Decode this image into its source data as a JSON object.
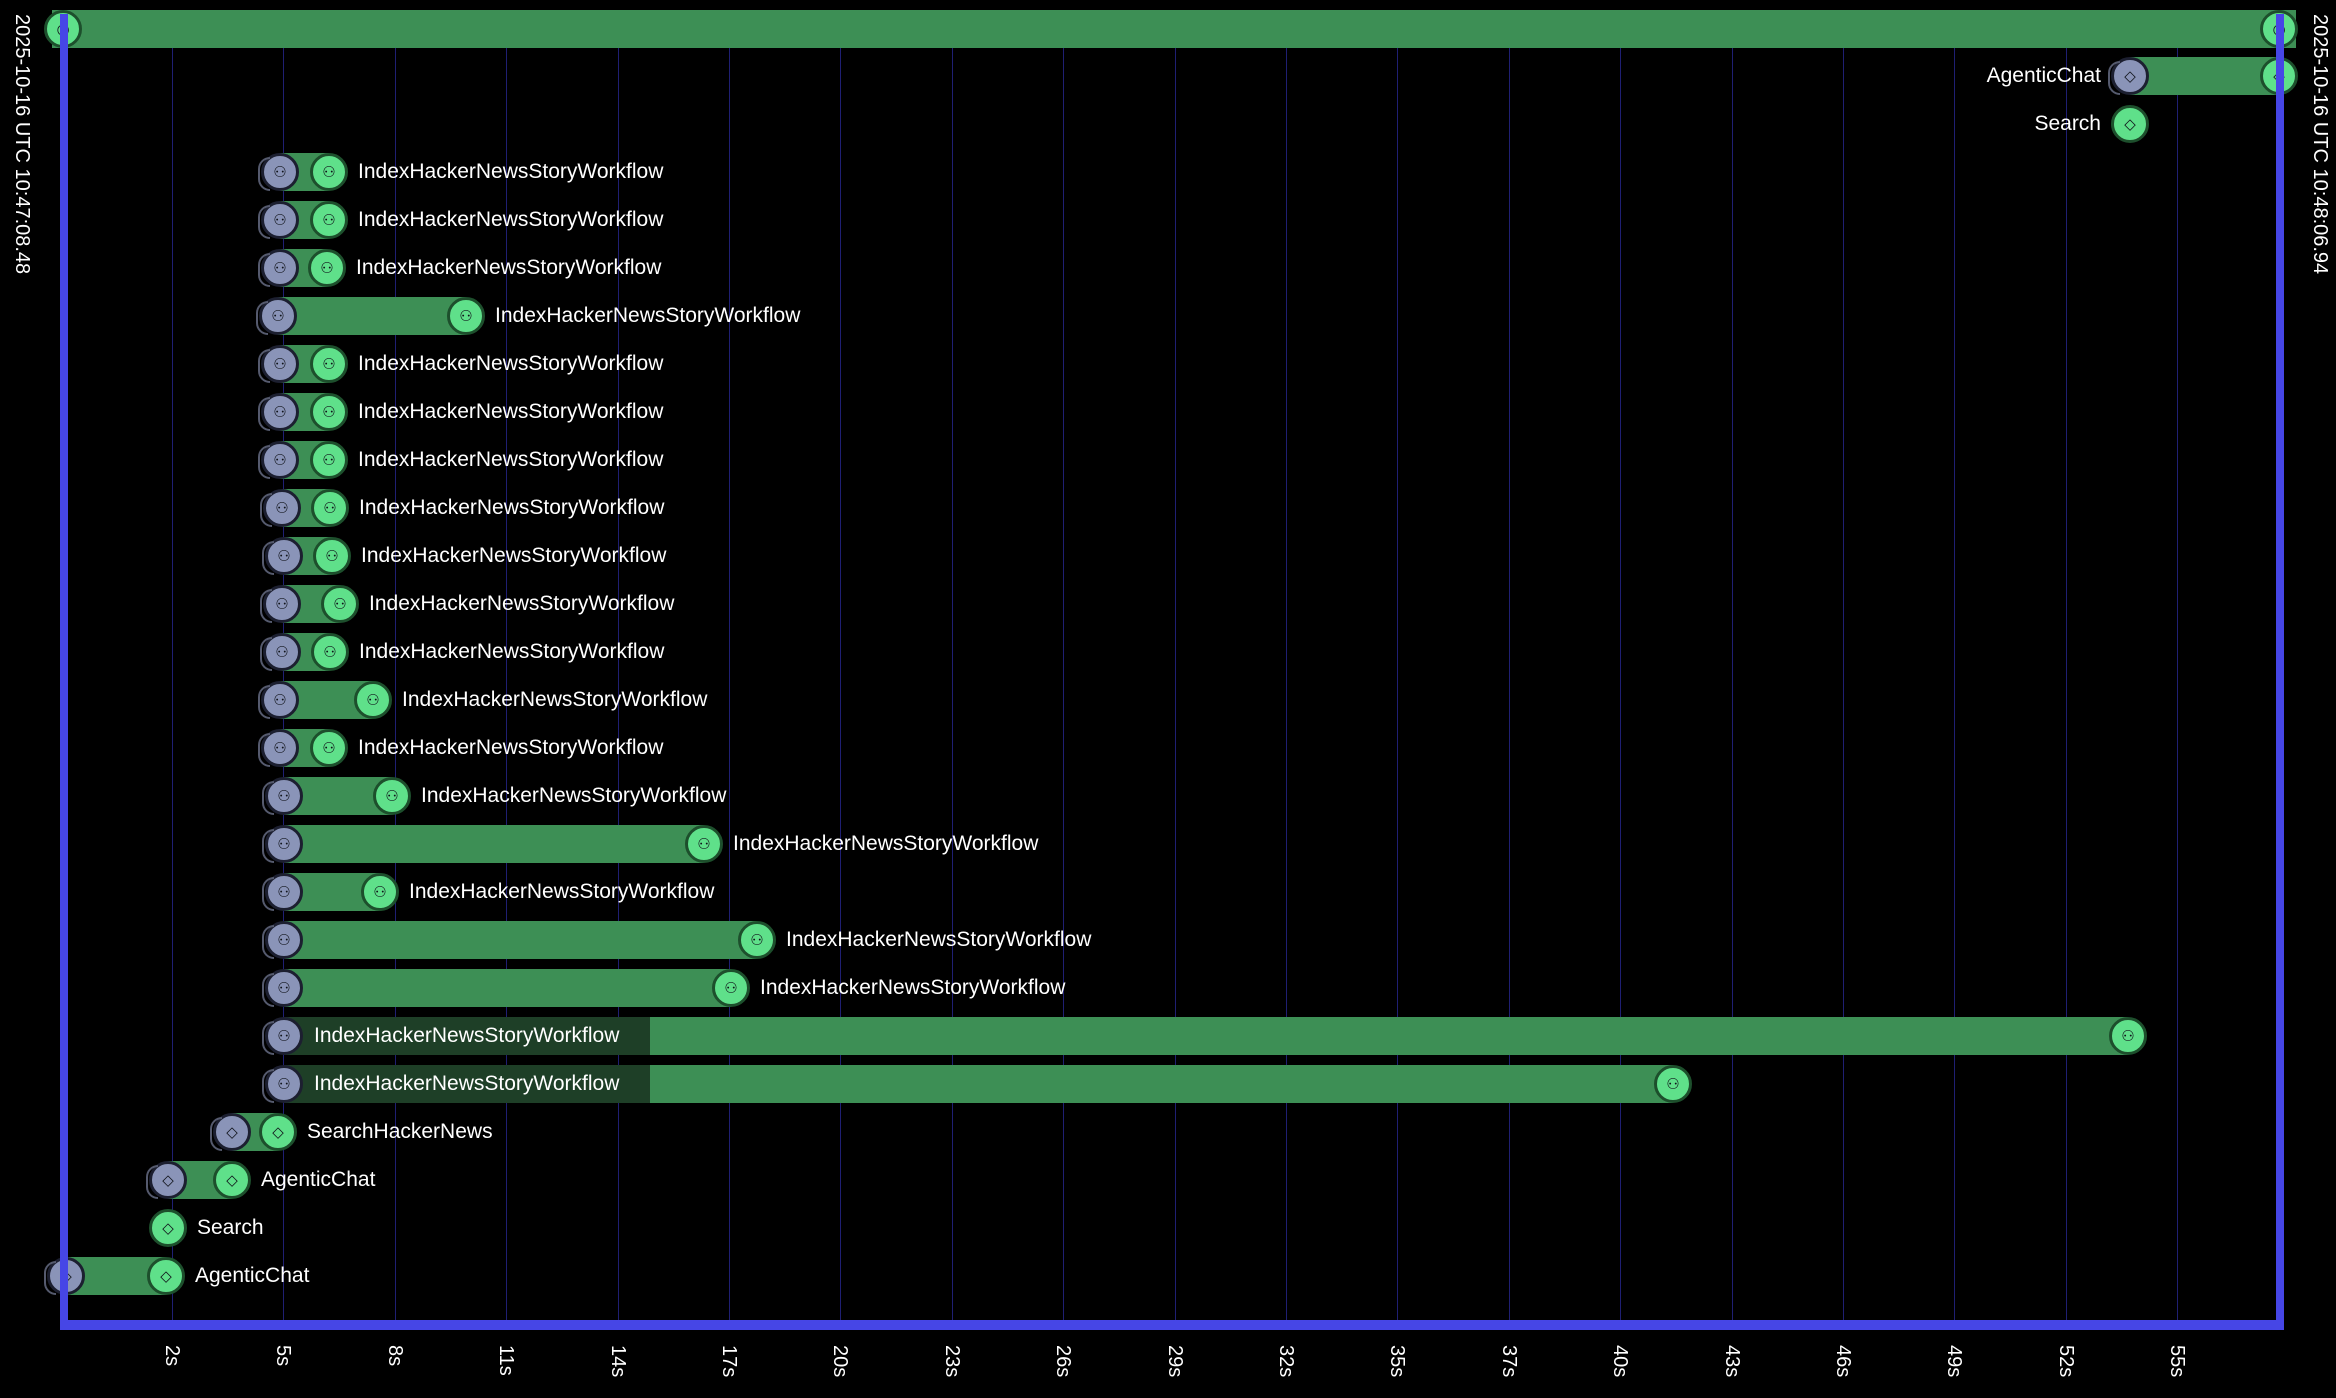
{
  "timeline": {
    "start_stamp": "2025-10-16 UTC 10:47:08.48",
    "end_stamp": "2025-10-16 UTC 10:48:06.94",
    "ticks": [
      "2s",
      "5s",
      "8s",
      "11s",
      "14s",
      "17s",
      "20s",
      "23s",
      "26s",
      "29s",
      "32s",
      "35s",
      "37s",
      "40s",
      "43s",
      "46s",
      "49s",
      "52s",
      "55s"
    ],
    "colors": {
      "frame": "#4646e6",
      "grid": "#1f1f73",
      "bar": "#3d8f55",
      "node_start": "#8a94b8",
      "node_end": "#5fe08a"
    },
    "icons": {
      "workflow": "workflow-icon",
      "activity": "diamond-icon",
      "session": "eye-icon"
    },
    "spans": [
      {
        "label": "AgenticChat",
        "kind": "activity"
      },
      {
        "label": "Search",
        "kind": "activity"
      },
      {
        "label": "IndexHackerNewsStoryWorkflow",
        "kind": "workflow"
      },
      {
        "label": "IndexHackerNewsStoryWorkflow",
        "kind": "workflow"
      },
      {
        "label": "IndexHackerNewsStoryWorkflow",
        "kind": "workflow"
      },
      {
        "label": "IndexHackerNewsStoryWorkflow",
        "kind": "workflow"
      },
      {
        "label": "IndexHackerNewsStoryWorkflow",
        "kind": "workflow"
      },
      {
        "label": "IndexHackerNewsStoryWorkflow",
        "kind": "workflow"
      },
      {
        "label": "IndexHackerNewsStoryWorkflow",
        "kind": "workflow"
      },
      {
        "label": "IndexHackerNewsStoryWorkflow",
        "kind": "workflow"
      },
      {
        "label": "IndexHackerNewsStoryWorkflow",
        "kind": "workflow"
      },
      {
        "label": "IndexHackerNewsStoryWorkflow",
        "kind": "workflow"
      },
      {
        "label": "IndexHackerNewsStoryWorkflow",
        "kind": "workflow"
      },
      {
        "label": "IndexHackerNewsStoryWorkflow",
        "kind": "workflow"
      },
      {
        "label": "IndexHackerNewsStoryWorkflow",
        "kind": "workflow"
      },
      {
        "label": "IndexHackerNewsStoryWorkflow",
        "kind": "workflow"
      },
      {
        "label": "IndexHackerNewsStoryWorkflow",
        "kind": "workflow"
      },
      {
        "label": "IndexHackerNewsStoryWorkflow",
        "kind": "workflow"
      },
      {
        "label": "IndexHackerNewsStoryWorkflow",
        "kind": "workflow"
      },
      {
        "label": "IndexHackerNewsStoryWorkflow",
        "kind": "workflow"
      },
      {
        "label": "IndexHackerNewsStoryWorkflow",
        "kind": "workflow"
      },
      {
        "label": "IndexHackerNewsStoryWorkflow",
        "kind": "workflow"
      },
      {
        "label": "SearchHackerNews",
        "kind": "activity"
      },
      {
        "label": "AgenticChat",
        "kind": "activity"
      },
      {
        "label": "Search",
        "kind": "activity"
      },
      {
        "label": "AgenticChat",
        "kind": "activity"
      }
    ]
  }
}
